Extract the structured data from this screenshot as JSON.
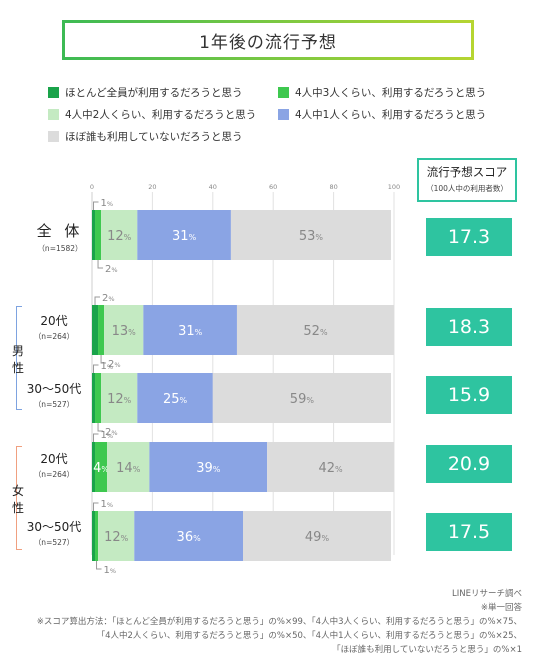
{
  "title": "1年後の流行予想",
  "legend": [
    {
      "label": "ほとんど全員が利用するだろうと思う",
      "color": "#1aa34a"
    },
    {
      "label": "4人中3人くらい、利用するだろうと思う",
      "color": "#3ec84f"
    },
    {
      "label": "4人中2人くらい、利用するだろうと思う",
      "color": "#c4eac2"
    },
    {
      "label": "4人中1人くらい、利用するだろうと思う",
      "color": "#8aa4e4"
    },
    {
      "label": "ほぼ誰も利用していないだろうと思う",
      "color": "#dcdcdc"
    }
  ],
  "score_header": {
    "title": "流行予想スコア",
    "subtitle": "（100人中の利用者数）"
  },
  "groups": {
    "male": "男性",
    "female": "女性"
  },
  "rows": [
    {
      "label": "全 体",
      "n": "（n=1582）",
      "score": "17.3"
    },
    {
      "label": "20代",
      "n": "（n=264）",
      "score": "18.3"
    },
    {
      "label": "30〜50代",
      "n": "（n=527）",
      "score": "15.9"
    },
    {
      "label": "20代",
      "n": "（n=264）",
      "score": "20.9"
    },
    {
      "label": "30〜50代",
      "n": "（n=527）",
      "score": "17.5"
    }
  ],
  "notes": {
    "source": "LINEリサーチ調べ",
    "single": "※単一回答",
    "formula1": "※スコア算出方法：「ほとんど全員が利用するだろうと思う」の%×99、「4人中3人くらい、利用するだろうと思う」の%×75、",
    "formula2": "「4人中2人くらい、利用するだろうと思う」の%×50、「4人中1人くらい、利用するだろうと思う」の%×25、",
    "formula3": "「ほぼ誰も利用していないだろうと思う」の%×1"
  },
  "chart_data": {
    "type": "bar",
    "orientation": "horizontal",
    "stacked": true,
    "xlim": [
      0,
      100
    ],
    "xticks": [
      "0",
      "20",
      "40",
      "60",
      "80",
      "100"
    ],
    "categories": [
      "全 体",
      "男性 20代",
      "男性 30〜50代",
      "女性 20代",
      "女性 30〜50代"
    ],
    "series": [
      {
        "name": "ほとんど全員が利用するだろうと思う",
        "values": [
          1,
          2,
          1,
          1,
          1
        ],
        "labels": [
          "1%",
          "2%",
          "1%",
          "1%",
          "1%"
        ]
      },
      {
        "name": "4人中3人くらい、利用するだろうと思う",
        "values": [
          2,
          2,
          2,
          4,
          1
        ],
        "labels": [
          "2%",
          "2%",
          "2%",
          "4%",
          "1%"
        ]
      },
      {
        "name": "4人中2人くらい、利用するだろうと思う",
        "values": [
          12,
          13,
          12,
          14,
          12
        ],
        "labels": [
          "12%",
          "13%",
          "12%",
          "14%",
          "12%"
        ]
      },
      {
        "name": "4人中1人くらい、利用するだろうと思う",
        "values": [
          31,
          31,
          25,
          39,
          36
        ],
        "labels": [
          "31%",
          "31%",
          "25%",
          "39%",
          "36%"
        ]
      },
      {
        "name": "ほぼ誰も利用していないだろうと思う",
        "values": [
          53,
          52,
          59,
          42,
          49
        ],
        "labels": [
          "53%",
          "52%",
          "59%",
          "42%",
          "49%"
        ]
      }
    ],
    "scores": [
      17.3,
      18.3,
      15.9,
      20.9,
      17.5
    ]
  }
}
